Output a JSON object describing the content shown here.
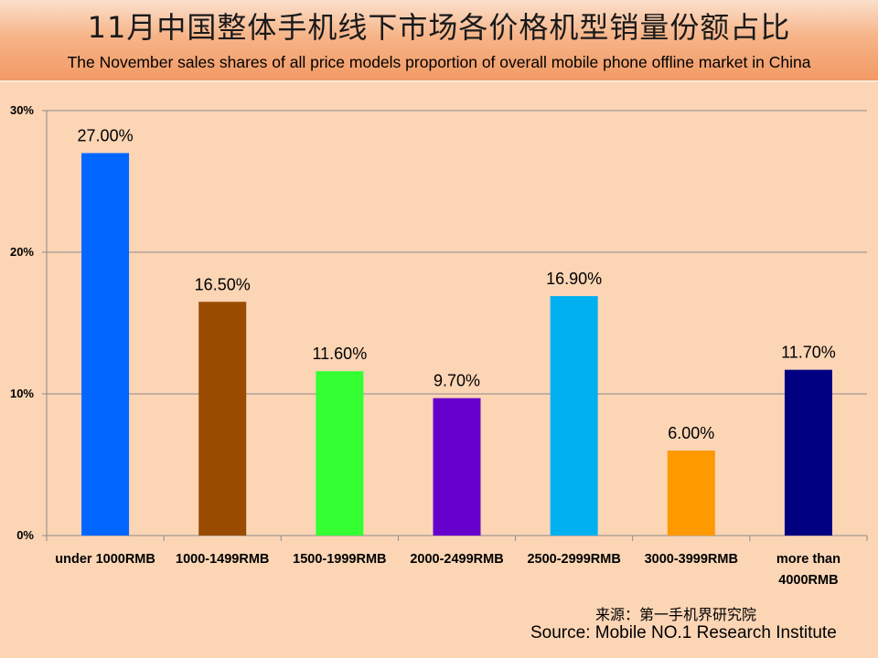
{
  "title": {
    "cn": "11月中国整体手机线下市场各价格机型销量份额占比",
    "en": "The November sales shares of all price models proportion of overall mobile phone offline market in China"
  },
  "source": {
    "cn": "来源：第一手机界研究院",
    "en": "Source: Mobile NO.1 Research Institute"
  },
  "chart_data": {
    "type": "bar",
    "categories": [
      [
        "under 1000RMB"
      ],
      [
        "1000-1499RMB"
      ],
      [
        "1500-1999RMB"
      ],
      [
        "2000-2499RMB"
      ],
      [
        "2500-2999RMB"
      ],
      [
        "3000-3999RMB"
      ],
      [
        "more than",
        "4000RMB"
      ]
    ],
    "values": [
      27.0,
      16.5,
      11.6,
      9.7,
      16.9,
      6.0,
      11.7
    ],
    "data_labels": [
      "27.00%",
      "16.50%",
      "11.60%",
      "9.70%",
      "16.90%",
      "6.00%",
      "11.70%"
    ],
    "colors": [
      "#0066ff",
      "#994c00",
      "#33ff33",
      "#6600cc",
      "#00b0f0",
      "#ff9900",
      "#000080"
    ],
    "ylim": [
      0,
      30
    ],
    "yticks": [
      0,
      10,
      20,
      30
    ],
    "ytick_labels": [
      "0%",
      "10%",
      "20%",
      "30%"
    ],
    "grid": true,
    "legend": "none",
    "title": "",
    "xlabel": "",
    "ylabel": ""
  }
}
